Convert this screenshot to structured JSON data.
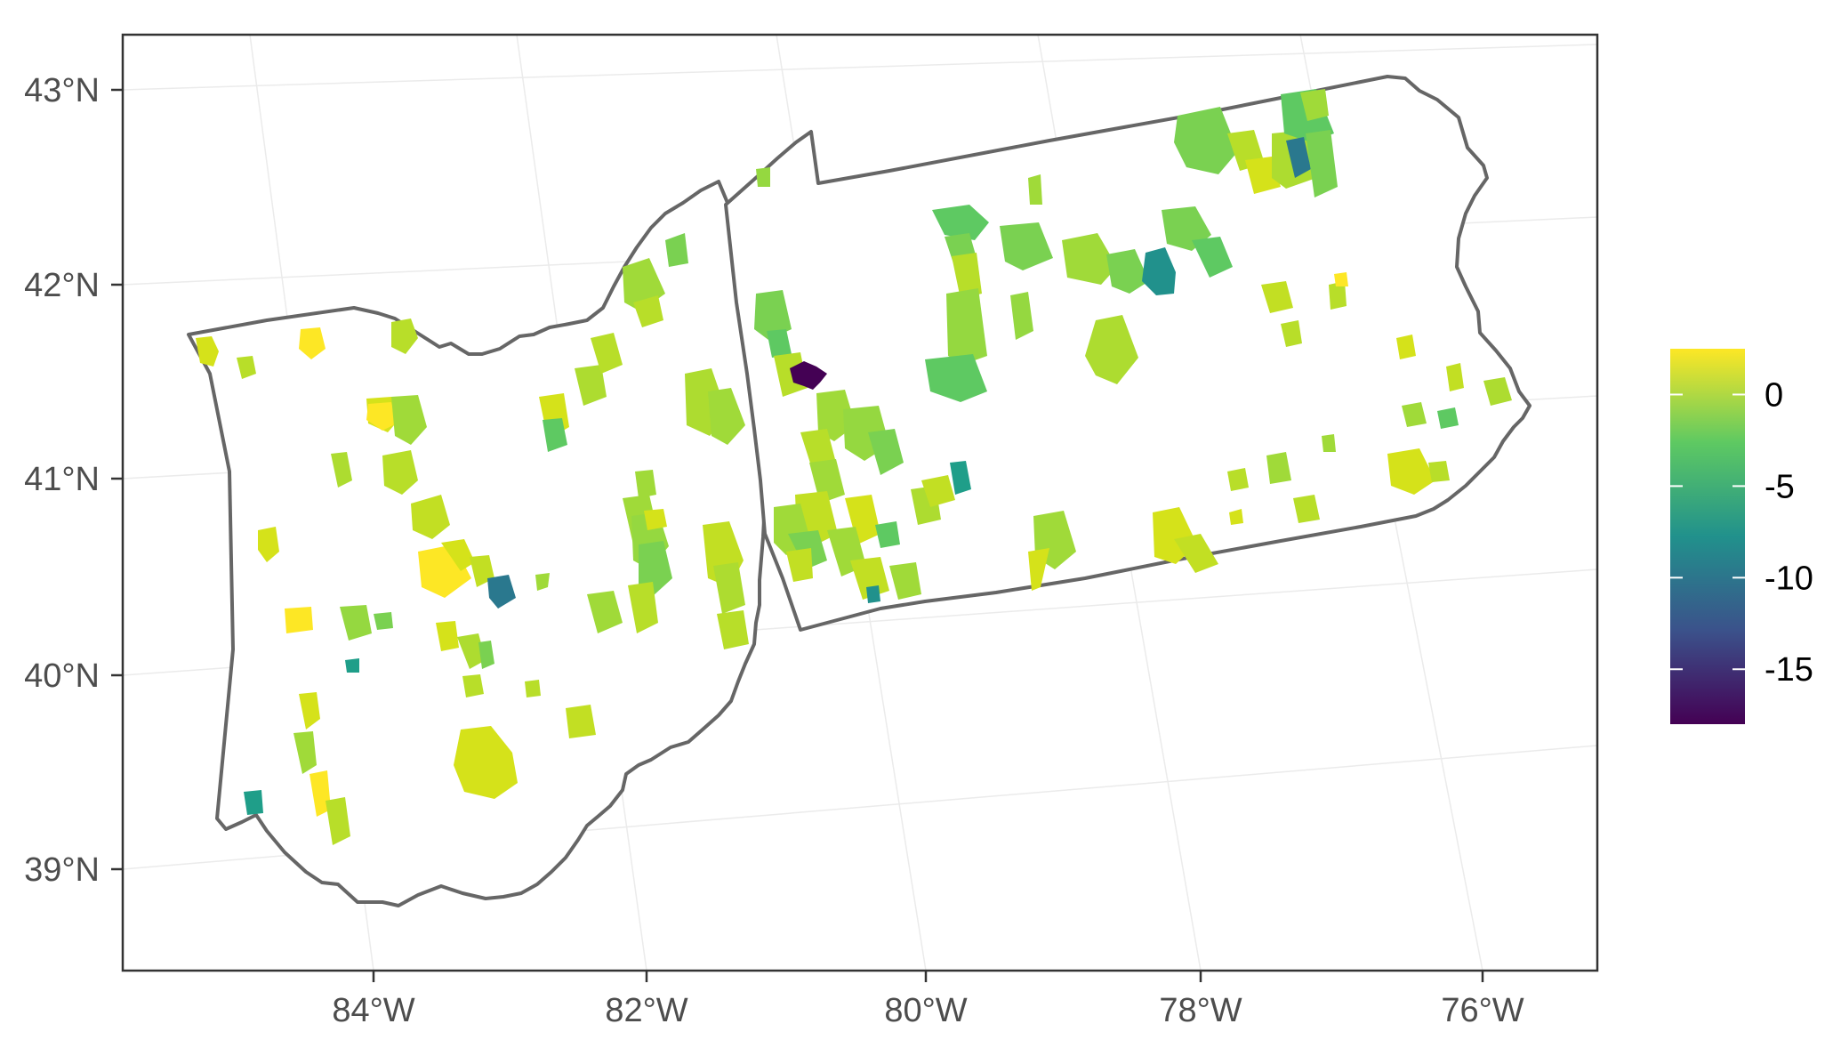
{
  "chart_data": {
    "type": "choropleth map",
    "title": "",
    "xlabel": "",
    "ylabel": "",
    "x_ticks": [
      "84°W",
      "82°W",
      "80°W",
      "78°W",
      "76°W"
    ],
    "y_ticks": [
      "43°N",
      "42°N",
      "41°N",
      "40°N",
      "39°N"
    ],
    "xlim": [
      -85.8,
      -75.1
    ],
    "ylim": [
      38.5,
      43.3
    ],
    "regions": [
      "Ohio",
      "Pennsylvania"
    ],
    "grid": true,
    "legend": {
      "type": "continuous colorbar",
      "placement": "right",
      "ticks": [
        "0",
        "-5",
        "-10",
        "-15"
      ],
      "tick_values": [
        0,
        -5,
        -10,
        -15
      ],
      "range": [
        -18,
        2.5
      ],
      "palette": "viridis",
      "colors": [
        "#440154",
        "#3b528b",
        "#21918c",
        "#5ec962",
        "#fde725"
      ]
    },
    "notable_values": [
      {
        "area": "dark purple patch, western Pennsylvania",
        "value": -18
      },
      {
        "area": "teal patch, north-central Pennsylvania",
        "value": -10
      },
      {
        "area": "teal patch, central Ohio",
        "value": -9
      }
    ]
  }
}
